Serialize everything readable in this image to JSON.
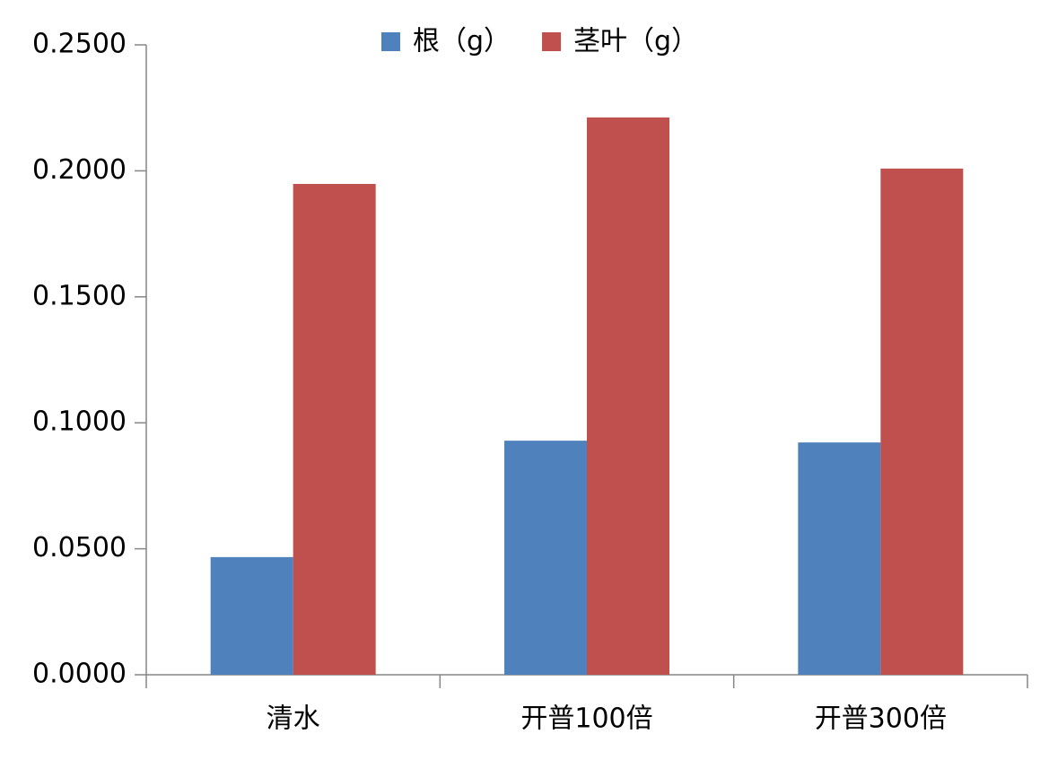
{
  "chart_data": {
    "type": "bar",
    "categories": [
      "清水",
      "开普100倍",
      "开普300倍"
    ],
    "series": [
      {
        "name": "根（g）",
        "color": "#4f81bd",
        "values": [
          0.0467,
          0.0929,
          0.0922
        ]
      },
      {
        "name": "茎叶（g）",
        "color": "#c0504d",
        "values": [
          0.1948,
          0.2212,
          0.2009
        ]
      }
    ],
    "ylim": [
      0,
      0.25
    ],
    "yticks": [
      {
        "value": 0,
        "label": "0.0000"
      },
      {
        "value": 0.05,
        "label": "0.0500"
      },
      {
        "value": 0.1,
        "label": "0.1000"
      },
      {
        "value": 0.15,
        "label": "0.1500"
      },
      {
        "value": 0.2,
        "label": "0.2000"
      },
      {
        "value": 0.25,
        "label": "0.2500"
      }
    ],
    "legend": "top",
    "grid": false
  }
}
